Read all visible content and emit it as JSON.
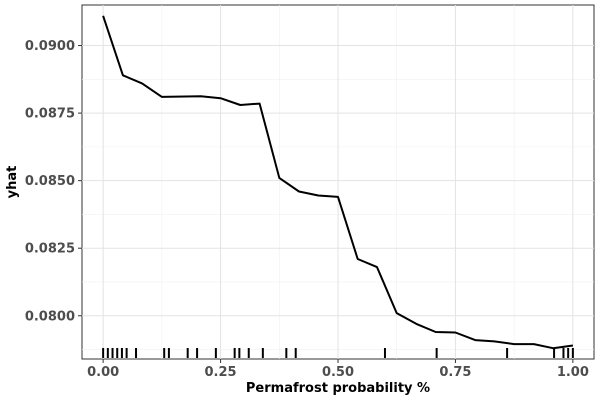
{
  "chart_data": {
    "type": "line",
    "xlabel": "Permafrost probability %",
    "ylabel": "yhat",
    "xlim": [
      -0.045,
      1.045
    ],
    "ylim": [
      0.0784,
      0.0915
    ],
    "x_ticks": [
      0.0,
      0.25,
      0.5,
      0.75,
      1.0
    ],
    "x_tick_labels": [
      "0.00",
      "0.25",
      "0.50",
      "0.75",
      "1.00"
    ],
    "y_ticks": [
      0.08,
      0.0825,
      0.085,
      0.0875,
      0.09
    ],
    "y_tick_labels": [
      "0.0800",
      "0.0825",
      "0.0850",
      "0.0875",
      "0.0900"
    ],
    "grid": true,
    "line_color": "#000000",
    "series": [
      {
        "x": [
          0.0,
          0.042,
          0.083,
          0.125,
          0.208,
          0.25,
          0.292,
          0.333,
          0.375,
          0.417,
          0.458,
          0.5,
          0.542,
          0.583,
          0.625,
          0.667,
          0.708,
          0.75,
          0.792,
          0.833,
          0.875,
          0.917,
          0.958,
          1.0
        ],
        "y": [
          0.0911,
          0.0889,
          0.0886,
          0.0881,
          0.08812,
          0.08805,
          0.0878,
          0.08785,
          0.0851,
          0.0846,
          0.08445,
          0.0844,
          0.0821,
          0.0818,
          0.0801,
          0.0797,
          0.0794,
          0.07938,
          0.0791,
          0.07905,
          0.07895,
          0.07895,
          0.0788,
          0.0789
        ]
      }
    ],
    "rug_x": [
      0.0,
      0.01,
      0.02,
      0.03,
      0.04,
      0.05,
      0.07,
      0.13,
      0.14,
      0.18,
      0.2,
      0.24,
      0.28,
      0.29,
      0.31,
      0.34,
      0.39,
      0.41,
      0.6,
      0.71,
      0.86,
      0.96,
      0.98,
      0.99,
      1.0
    ]
  }
}
